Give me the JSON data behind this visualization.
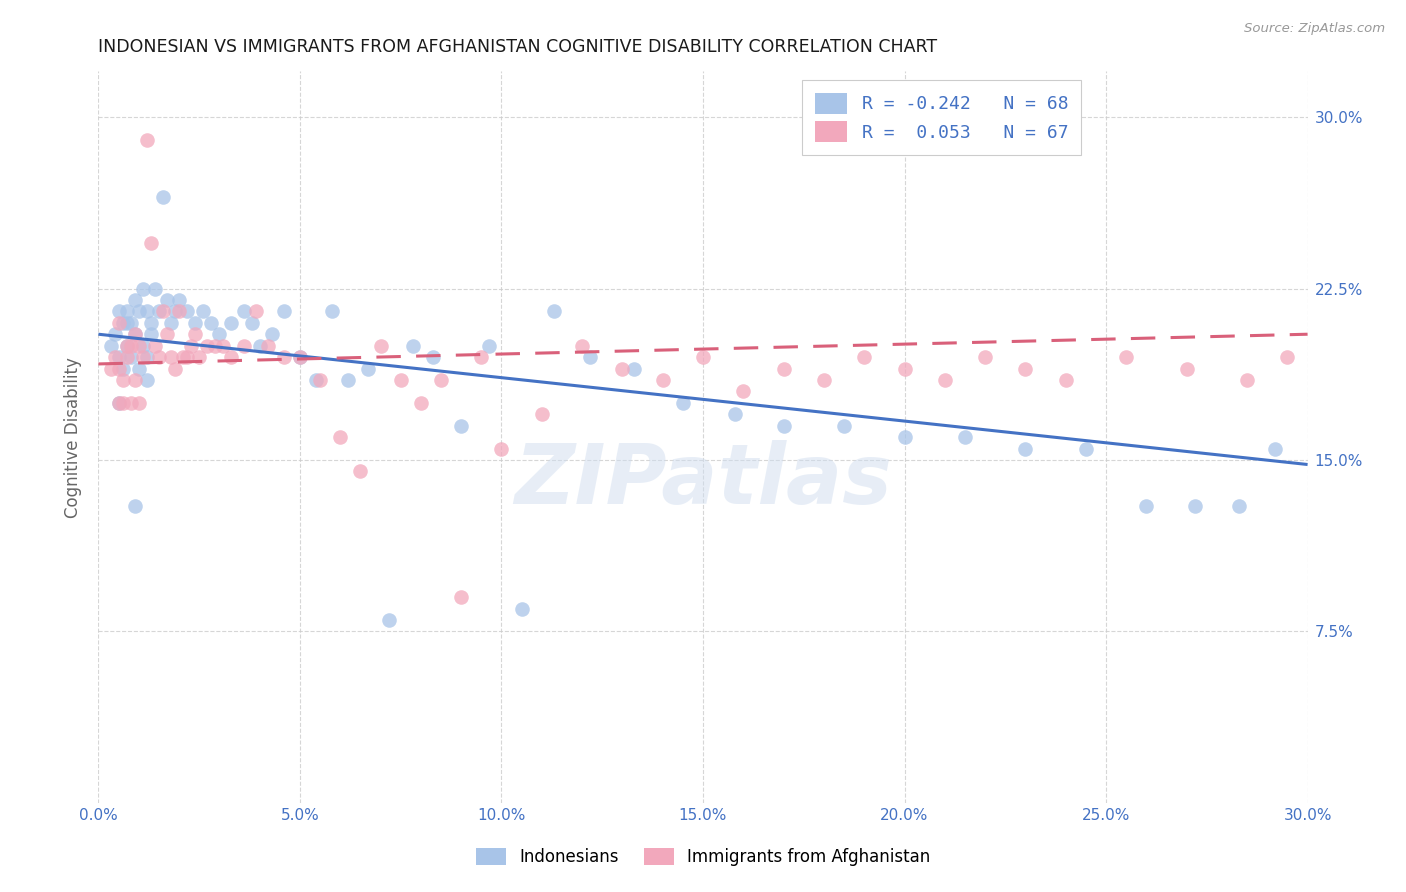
{
  "title": "INDONESIAN VS IMMIGRANTS FROM AFGHANISTAN COGNITIVE DISABILITY CORRELATION CHART",
  "source": "Source: ZipAtlas.com",
  "ylabel": "Cognitive Disability",
  "xlim": [
    0.0,
    0.3
  ],
  "ylim": [
    0.0,
    0.32
  ],
  "xtick_vals": [
    0.0,
    0.05,
    0.1,
    0.15,
    0.2,
    0.25,
    0.3
  ],
  "ytick_vals": [
    0.075,
    0.15,
    0.225,
    0.3
  ],
  "legend_text_color": "#4472C4",
  "color_blue": "#A8C4E8",
  "color_pink": "#F2A8BC",
  "line_color_blue": "#4472C4",
  "line_color_pink": "#D9607A",
  "R1": -0.242,
  "R2": 0.053,
  "N1": 68,
  "N2": 67,
  "watermark": "ZIPatlas",
  "background_color": "#FFFFFF",
  "grid_color": "#CCCCCC",
  "indonesians_x": [
    0.003,
    0.004,
    0.005,
    0.005,
    0.006,
    0.006,
    0.007,
    0.007,
    0.008,
    0.008,
    0.009,
    0.009,
    0.01,
    0.01,
    0.011,
    0.011,
    0.012,
    0.012,
    0.013,
    0.013,
    0.014,
    0.015,
    0.016,
    0.017,
    0.018,
    0.019,
    0.02,
    0.022,
    0.024,
    0.026,
    0.028,
    0.03,
    0.033,
    0.036,
    0.038,
    0.04,
    0.043,
    0.046,
    0.05,
    0.054,
    0.058,
    0.062,
    0.067,
    0.072,
    0.078,
    0.083,
    0.09,
    0.097,
    0.105,
    0.113,
    0.122,
    0.133,
    0.145,
    0.158,
    0.17,
    0.185,
    0.2,
    0.215,
    0.23,
    0.245,
    0.26,
    0.272,
    0.283,
    0.292,
    0.005,
    0.007,
    0.009,
    0.012
  ],
  "indonesians_y": [
    0.2,
    0.205,
    0.195,
    0.215,
    0.21,
    0.19,
    0.215,
    0.2,
    0.21,
    0.195,
    0.22,
    0.205,
    0.215,
    0.19,
    0.225,
    0.2,
    0.215,
    0.195,
    0.21,
    0.205,
    0.225,
    0.215,
    0.265,
    0.22,
    0.21,
    0.215,
    0.22,
    0.215,
    0.21,
    0.215,
    0.21,
    0.205,
    0.21,
    0.215,
    0.21,
    0.2,
    0.205,
    0.215,
    0.195,
    0.185,
    0.215,
    0.185,
    0.19,
    0.08,
    0.2,
    0.195,
    0.165,
    0.2,
    0.085,
    0.215,
    0.195,
    0.19,
    0.175,
    0.17,
    0.165,
    0.165,
    0.16,
    0.16,
    0.155,
    0.155,
    0.13,
    0.13,
    0.13,
    0.155,
    0.175,
    0.21,
    0.13,
    0.185
  ],
  "afghanistan_x": [
    0.003,
    0.004,
    0.005,
    0.005,
    0.006,
    0.006,
    0.007,
    0.007,
    0.008,
    0.008,
    0.009,
    0.009,
    0.01,
    0.01,
    0.011,
    0.012,
    0.013,
    0.014,
    0.015,
    0.016,
    0.017,
    0.018,
    0.019,
    0.02,
    0.021,
    0.022,
    0.023,
    0.024,
    0.025,
    0.027,
    0.029,
    0.031,
    0.033,
    0.036,
    0.039,
    0.042,
    0.046,
    0.05,
    0.055,
    0.06,
    0.065,
    0.07,
    0.075,
    0.08,
    0.085,
    0.09,
    0.095,
    0.1,
    0.11,
    0.12,
    0.13,
    0.14,
    0.15,
    0.16,
    0.17,
    0.18,
    0.19,
    0.2,
    0.21,
    0.22,
    0.23,
    0.24,
    0.255,
    0.27,
    0.285,
    0.295,
    0.005
  ],
  "afghanistan_y": [
    0.19,
    0.195,
    0.175,
    0.21,
    0.185,
    0.175,
    0.2,
    0.195,
    0.175,
    0.2,
    0.205,
    0.185,
    0.175,
    0.2,
    0.195,
    0.29,
    0.245,
    0.2,
    0.195,
    0.215,
    0.205,
    0.195,
    0.19,
    0.215,
    0.195,
    0.195,
    0.2,
    0.205,
    0.195,
    0.2,
    0.2,
    0.2,
    0.195,
    0.2,
    0.215,
    0.2,
    0.195,
    0.195,
    0.185,
    0.16,
    0.145,
    0.2,
    0.185,
    0.175,
    0.185,
    0.09,
    0.195,
    0.155,
    0.17,
    0.2,
    0.19,
    0.185,
    0.195,
    0.18,
    0.19,
    0.185,
    0.195,
    0.19,
    0.185,
    0.195,
    0.19,
    0.185,
    0.195,
    0.19,
    0.185,
    0.195,
    0.19
  ]
}
